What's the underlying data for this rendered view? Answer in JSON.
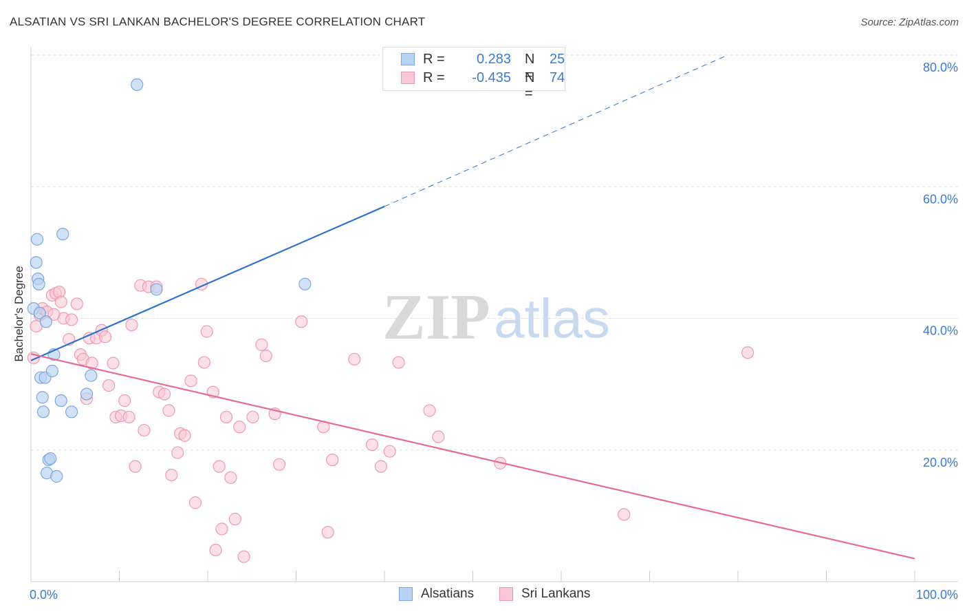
{
  "title": "ALSATIAN VS SRI LANKAN BACHELOR'S DEGREE CORRELATION CHART",
  "source": "Source: ZipAtlas.com",
  "watermark": {
    "zip": "ZIP",
    "atlas": "atlas"
  },
  "legend": {
    "rows": [
      {
        "r_label": "R =",
        "r_value": "0.283",
        "n_label": "N =",
        "n_value": "25"
      },
      {
        "r_label": "R =",
        "r_value": "-0.435",
        "n_label": "N =",
        "n_value": "74"
      }
    ]
  },
  "bottom_legend": {
    "alsatians": "Alsatians",
    "srilankans": "Sri Lankans"
  },
  "colors": {
    "alsatian_fill": "#b8d2f3",
    "alsatian_stroke": "#7ea6dc",
    "alsatian_line": "#2f72c9",
    "srilankan_fill": "#f9c6d5",
    "srilankan_stroke": "#ec9ab4",
    "srilankan_line": "#e36b97",
    "tick_label": "#3d7ad1",
    "grid": "#dddddd"
  },
  "chart_data": {
    "type": "scatter",
    "title": "ALSATIAN VS SRI LANKAN BACHELOR'S DEGREE CORRELATION CHART",
    "xlabel": "",
    "ylabel": "Bachelor's Degree",
    "xlim": [
      0,
      100
    ],
    "ylim": [
      0,
      80
    ],
    "x_tick_labels": [
      "0.0%",
      "100.0%"
    ],
    "y_ticks": [
      20,
      40,
      60,
      80
    ],
    "y_tick_labels": [
      "20.0%",
      "40.0%",
      "60.0%",
      "80.0%"
    ],
    "grid": true,
    "legend_position": "top-center",
    "series": [
      {
        "name": "Alsatians",
        "r": 0.283,
        "n": 25,
        "trend": {
          "x0": 0,
          "y0": 33.6,
          "x1": 40,
          "y1": 57.0,
          "dash_x1": 78.5,
          "dash_y1": 79.8
        },
        "points": [
          [
            0.3,
            41.5
          ],
          [
            0.6,
            48.5
          ],
          [
            0.7,
            52.0
          ],
          [
            0.8,
            46.0
          ],
          [
            0.9,
            45.2
          ],
          [
            1.0,
            40.8
          ],
          [
            1.1,
            31.0
          ],
          [
            1.3,
            28.0
          ],
          [
            1.4,
            25.8
          ],
          [
            1.6,
            31.0
          ],
          [
            1.7,
            39.5
          ],
          [
            1.8,
            16.5
          ],
          [
            2.0,
            18.5
          ],
          [
            2.2,
            18.7
          ],
          [
            2.4,
            32.0
          ],
          [
            2.6,
            34.5
          ],
          [
            2.9,
            16.0
          ],
          [
            3.4,
            27.5
          ],
          [
            3.6,
            52.8
          ],
          [
            4.6,
            25.8
          ],
          [
            6.3,
            28.5
          ],
          [
            6.8,
            31.3
          ],
          [
            12.0,
            75.5
          ],
          [
            14.2,
            44.4
          ],
          [
            31.0,
            45.2
          ]
        ]
      },
      {
        "name": "Sri Lankans",
        "r": -0.435,
        "n": 74,
        "trend": {
          "x0": 0,
          "y0": 34.6,
          "x1": 100,
          "y1": 3.5
        },
        "points": [
          [
            0.3,
            34.0
          ],
          [
            0.6,
            38.8
          ],
          [
            1.0,
            40.5
          ],
          [
            1.3,
            41.5
          ],
          [
            1.8,
            41.0
          ],
          [
            2.4,
            43.5
          ],
          [
            2.8,
            43.8
          ],
          [
            3.2,
            44.0
          ],
          [
            3.4,
            42.5
          ],
          [
            3.7,
            40.0
          ],
          [
            4.3,
            36.8
          ],
          [
            4.6,
            39.8
          ],
          [
            5.2,
            42.2
          ],
          [
            5.6,
            34.5
          ],
          [
            5.9,
            33.8
          ],
          [
            6.3,
            27.8
          ],
          [
            6.6,
            37.0
          ],
          [
            6.9,
            33.2
          ],
          [
            7.4,
            37.0
          ],
          [
            8.0,
            38.2
          ],
          [
            8.4,
            37.2
          ],
          [
            8.8,
            29.8
          ],
          [
            9.3,
            33.2
          ],
          [
            9.6,
            25.0
          ],
          [
            10.2,
            25.2
          ],
          [
            10.6,
            27.5
          ],
          [
            11.4,
            39.0
          ],
          [
            11.8,
            17.5
          ],
          [
            12.4,
            45.0
          ],
          [
            12.8,
            23.0
          ],
          [
            13.3,
            44.8
          ],
          [
            14.2,
            44.8
          ],
          [
            14.5,
            28.8
          ],
          [
            15.1,
            28.5
          ],
          [
            15.6,
            26.0
          ],
          [
            15.9,
            16.2
          ],
          [
            16.6,
            19.6
          ],
          [
            16.9,
            22.5
          ],
          [
            17.4,
            22.2
          ],
          [
            18.1,
            30.5
          ],
          [
            18.6,
            12.0
          ],
          [
            19.3,
            45.2
          ],
          [
            19.6,
            33.3
          ],
          [
            19.9,
            38.0
          ],
          [
            20.6,
            28.8
          ],
          [
            20.9,
            4.8
          ],
          [
            21.3,
            17.5
          ],
          [
            21.6,
            8.0
          ],
          [
            22.1,
            25.0
          ],
          [
            22.6,
            15.8
          ],
          [
            23.1,
            9.5
          ],
          [
            23.6,
            23.5
          ],
          [
            24.1,
            3.8
          ],
          [
            25.1,
            25.0
          ],
          [
            26.1,
            36.0
          ],
          [
            26.6,
            34.3
          ],
          [
            27.6,
            25.5
          ],
          [
            28.1,
            17.8
          ],
          [
            30.6,
            39.5
          ],
          [
            33.1,
            23.5
          ],
          [
            33.6,
            7.5
          ],
          [
            34.1,
            18.5
          ],
          [
            36.6,
            33.8
          ],
          [
            38.6,
            20.8
          ],
          [
            39.6,
            17.5
          ],
          [
            40.6,
            19.8
          ],
          [
            41.6,
            33.3
          ],
          [
            45.1,
            26.0
          ],
          [
            46.1,
            22.0
          ],
          [
            53.1,
            18.0
          ],
          [
            67.1,
            10.2
          ],
          [
            81.1,
            34.8
          ],
          [
            2.6,
            40.6
          ],
          [
            11.1,
            25.0
          ]
        ]
      }
    ]
  }
}
